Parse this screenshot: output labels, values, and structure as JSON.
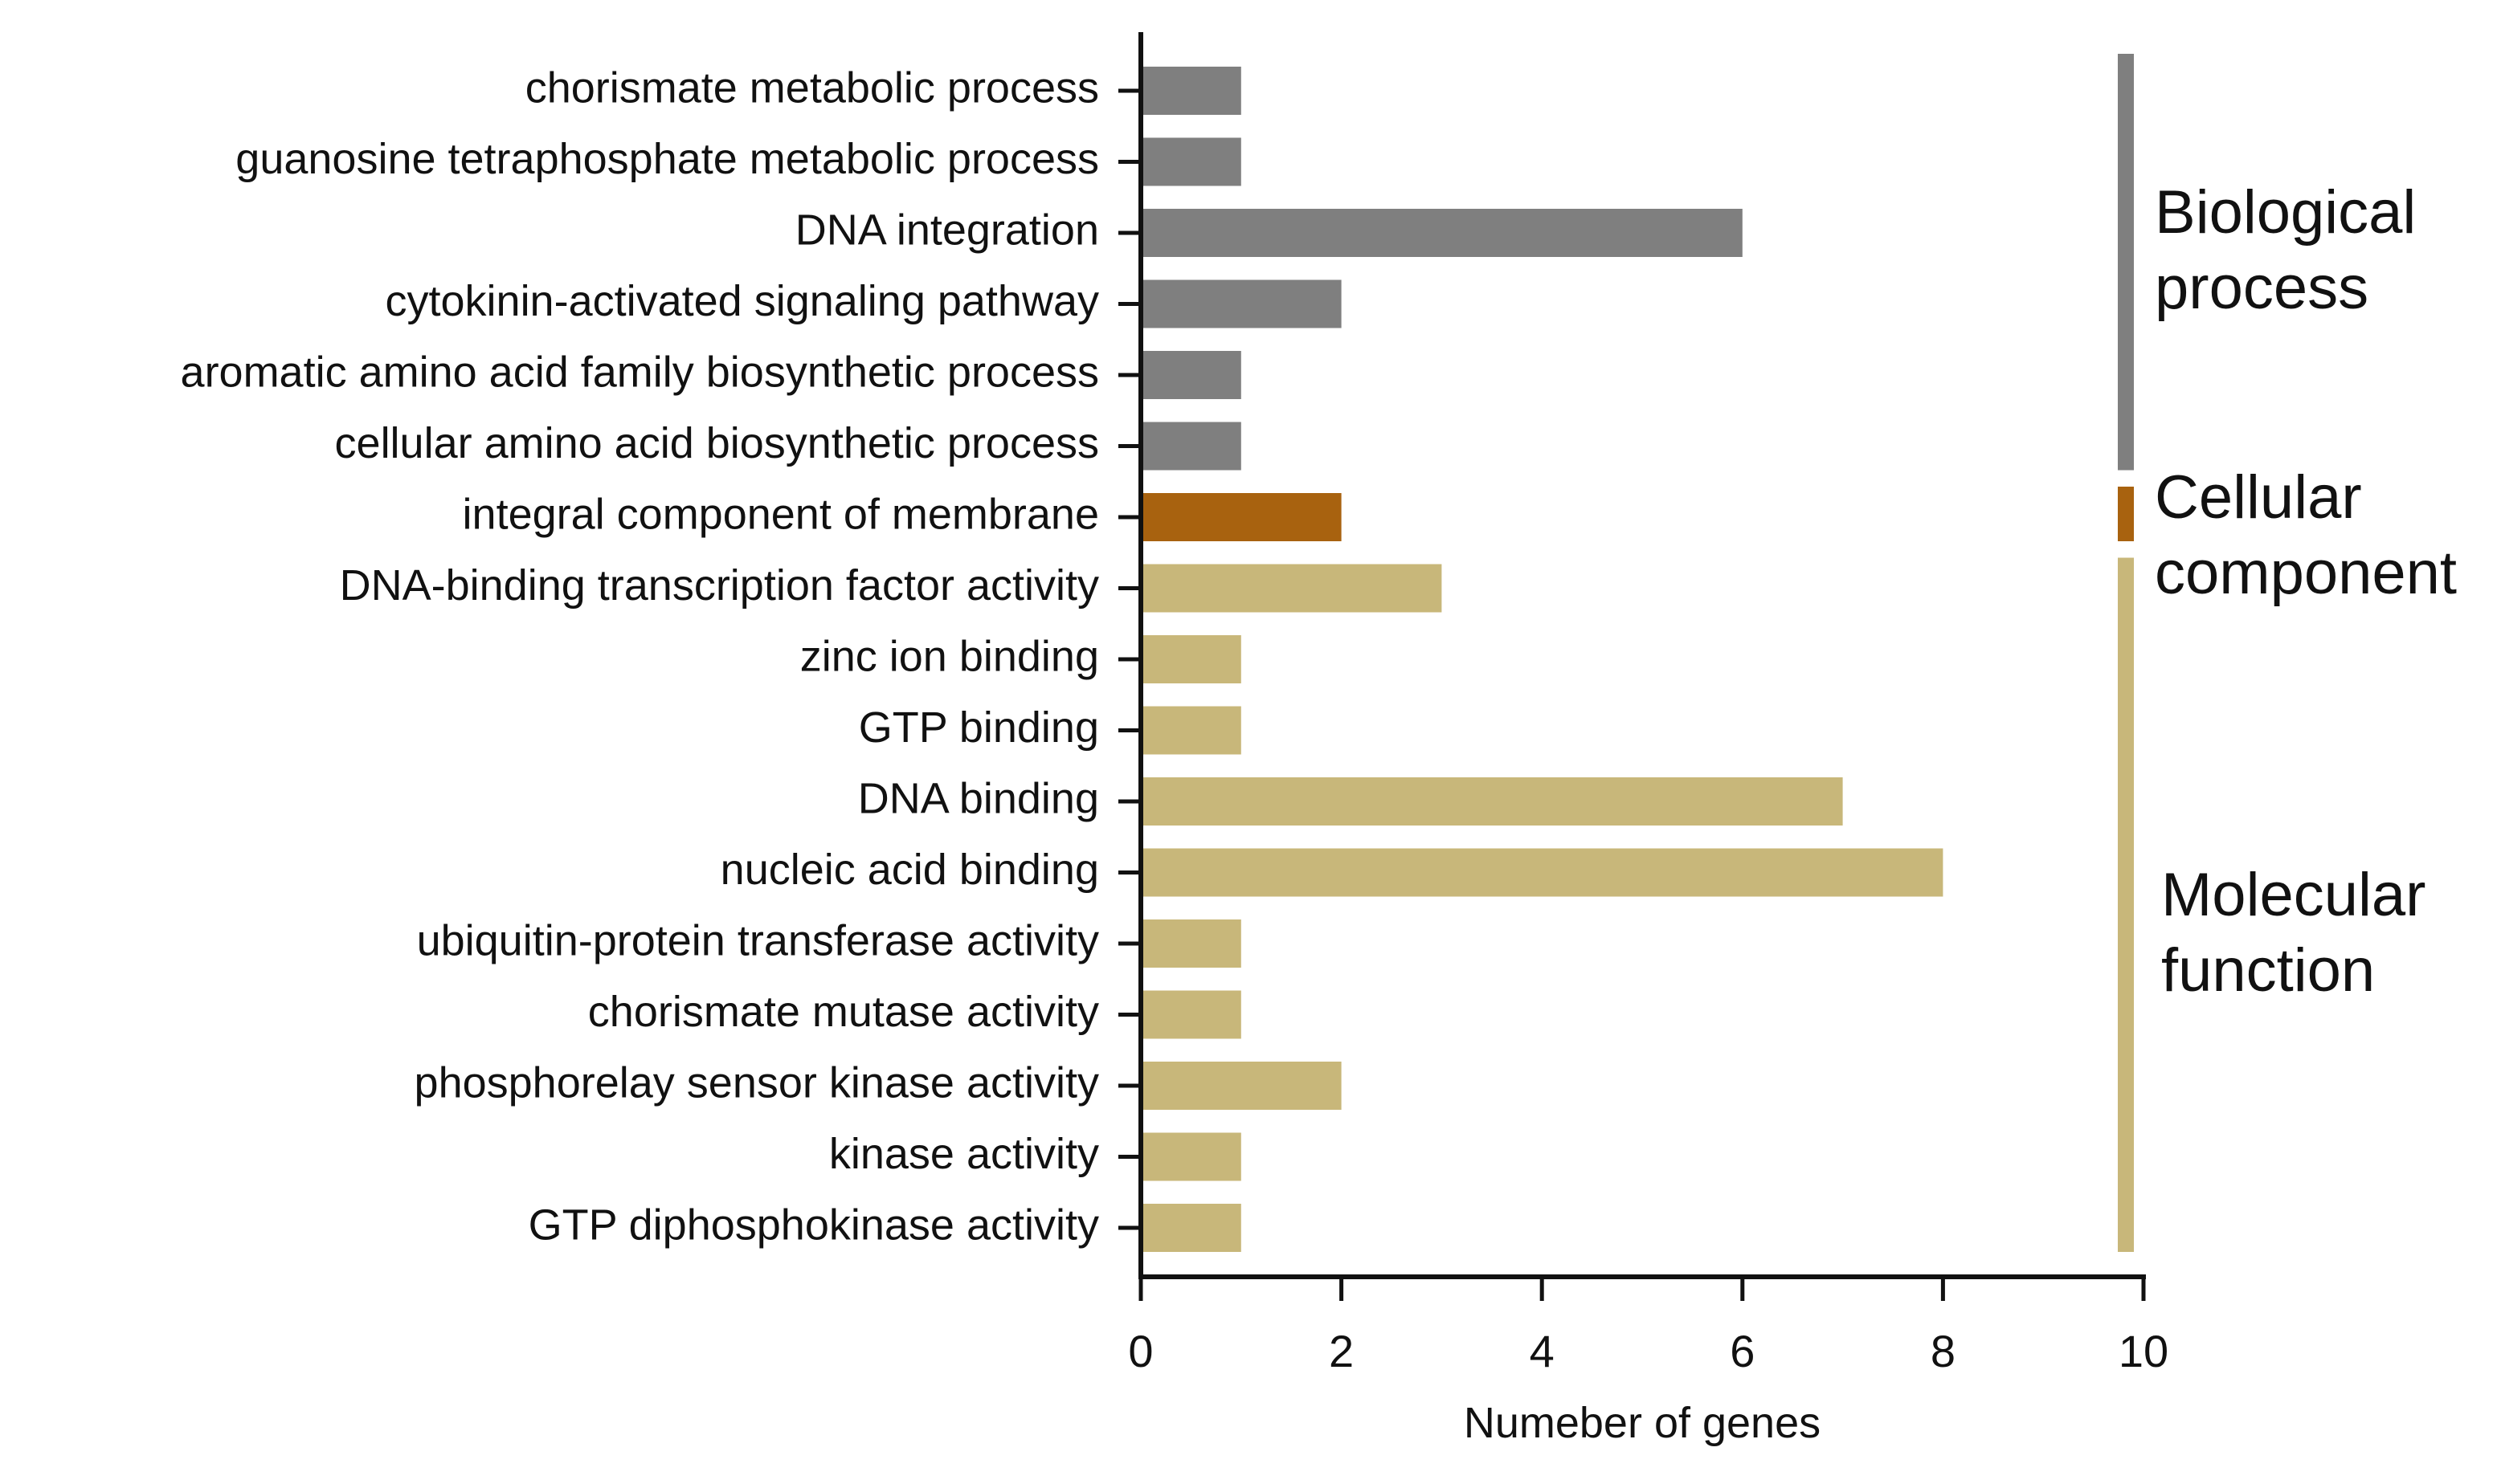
{
  "chart_data": {
    "type": "bar",
    "orientation": "horizontal",
    "title": "",
    "xlabel": "Numeber of genes",
    "ylabel": "",
    "xlim": [
      0,
      10
    ],
    "xticks": [
      "0",
      "2",
      "4",
      "6",
      "8",
      "10"
    ],
    "grid": false,
    "categories": [
      "chorismate metabolic process",
      "guanosine tetraphosphate metabolic process",
      "DNA integration",
      "cytokinin-activated signaling pathway",
      "aromatic amino acid family biosynthetic process",
      "cellular amino acid biosynthetic process",
      "integral component of membrane",
      "DNA-binding transcription factor activity",
      "zinc ion binding",
      "GTP binding",
      "DNA binding",
      "nucleic acid binding",
      "ubiquitin-protein transferase activity",
      "chorismate mutase activity",
      "phosphorelay sensor kinase activity",
      "kinase activity",
      "GTP diphosphokinase activity"
    ],
    "values": [
      1,
      1,
      6,
      2,
      1,
      1,
      2,
      3,
      1,
      1,
      7,
      8,
      1,
      1,
      2,
      1,
      1
    ],
    "bar_groups": [
      0,
      0,
      0,
      0,
      0,
      0,
      1,
      2,
      2,
      2,
      2,
      2,
      2,
      2,
      2,
      2,
      2
    ],
    "groups": [
      {
        "label_line1": "Biological",
        "label_line2": "process",
        "color": "#7f7f7f"
      },
      {
        "label_line1": "Cellular",
        "label_line2": "component",
        "color": "#a8620f"
      },
      {
        "label_line1": "Molecular",
        "label_line2": "function",
        "color": "#c8b77a"
      }
    ],
    "axis_color": "#111111"
  }
}
